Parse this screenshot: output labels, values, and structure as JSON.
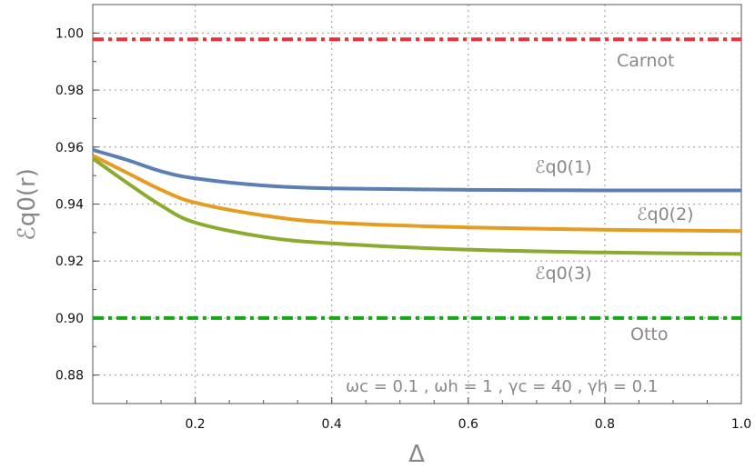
{
  "chart_data": {
    "type": "line",
    "title": "",
    "xlabel": "Δ",
    "ylabel": "ℰq0(r)",
    "xlim": [
      0.05,
      1.0
    ],
    "ylim": [
      0.87,
      1.01
    ],
    "grid": true,
    "x_ticks": [
      "0.2",
      "0.4",
      "0.6",
      "0.8",
      "1.0"
    ],
    "y_ticks": [
      "0.88",
      "0.90",
      "0.92",
      "0.94",
      "0.96",
      "0.98",
      "1.00"
    ],
    "annotation": "ωc = 0.1 , ωh = 1 , γc = 40 , γh = 0.1",
    "series": [
      {
        "name": "ℰq0(1)",
        "color": "#5b7fb5",
        "style": "solid",
        "x": [
          0.05,
          0.1,
          0.15,
          0.2,
          0.3,
          0.4,
          0.6,
          0.8,
          1.0
        ],
        "y": [
          0.959,
          0.9555,
          0.9515,
          0.949,
          0.9465,
          0.9455,
          0.945,
          0.9448,
          0.9448
        ]
      },
      {
        "name": "ℰq0(2)",
        "color": "#e59c22",
        "style": "solid",
        "x": [
          0.05,
          0.1,
          0.15,
          0.2,
          0.3,
          0.4,
          0.6,
          0.8,
          1.0
        ],
        "y": [
          0.957,
          0.951,
          0.945,
          0.9405,
          0.936,
          0.9335,
          0.9318,
          0.931,
          0.9305
        ]
      },
      {
        "name": "ℰq0(3)",
        "color": "#8aab2e",
        "style": "solid",
        "x": [
          0.05,
          0.1,
          0.15,
          0.2,
          0.3,
          0.4,
          0.6,
          0.8,
          1.0
        ],
        "y": [
          0.956,
          0.9475,
          0.9395,
          0.9335,
          0.9285,
          0.9262,
          0.924,
          0.923,
          0.9225
        ]
      },
      {
        "name": "Carnot",
        "color": "#e8303a",
        "style": "dashdot",
        "x": [
          0.05,
          1.0
        ],
        "y": [
          0.9978,
          0.9978
        ]
      },
      {
        "name": "Otto",
        "color": "#16a616",
        "style": "dashdot",
        "x": [
          0.05,
          1.0
        ],
        "y": [
          0.9,
          0.9
        ]
      }
    ]
  }
}
